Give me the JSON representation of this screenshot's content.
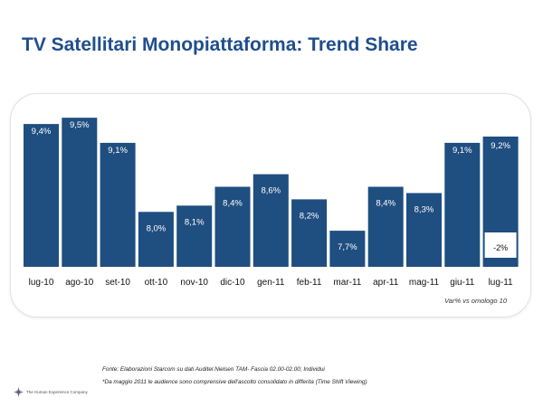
{
  "page": {
    "title": "TV Satellitari Monopiattaforma: Trend Share",
    "note": "Var% vs omologo 10",
    "source": "Fonte: Elaborazioni Starcom su dati Auditel Nielsen TAM- Fascia 02.00-02.00; Individui",
    "footnote": "*Da maggio 2011 le audience sono comprensive dell'ascolto consolidato in differita (Time Shift Viewing)",
    "company": "The Human Experience Company"
  },
  "colors": {
    "bar": "#1f4e80",
    "title": "#1f4e8c"
  },
  "chart_data": {
    "type": "bar",
    "categories": [
      "lug-10",
      "ago-10",
      "set-10",
      "ott-10",
      "nov-10",
      "dic-10",
      "gen-11",
      "feb-11",
      "mar-11",
      "apr-11",
      "mag-11",
      "giu-11",
      "lug-11"
    ],
    "values": [
      9.4,
      9.5,
      9.1,
      8.0,
      8.1,
      8.4,
      8.6,
      8.2,
      7.7,
      8.4,
      8.3,
      9.1,
      9.2
    ],
    "value_labels": [
      "9,4%",
      "9,5%",
      "9,1%",
      "8,0%",
      "8,1%",
      "8,4%",
      "8,6%",
      "8,2%",
      "7,7%",
      "8,4%",
      "8,3%",
      "9,1%",
      "9,2%"
    ],
    "variation": {
      "category": "lug-11",
      "value": -2,
      "label": "-2%"
    },
    "title": "",
    "xlabel": "",
    "ylabel": "",
    "grid": false
  }
}
